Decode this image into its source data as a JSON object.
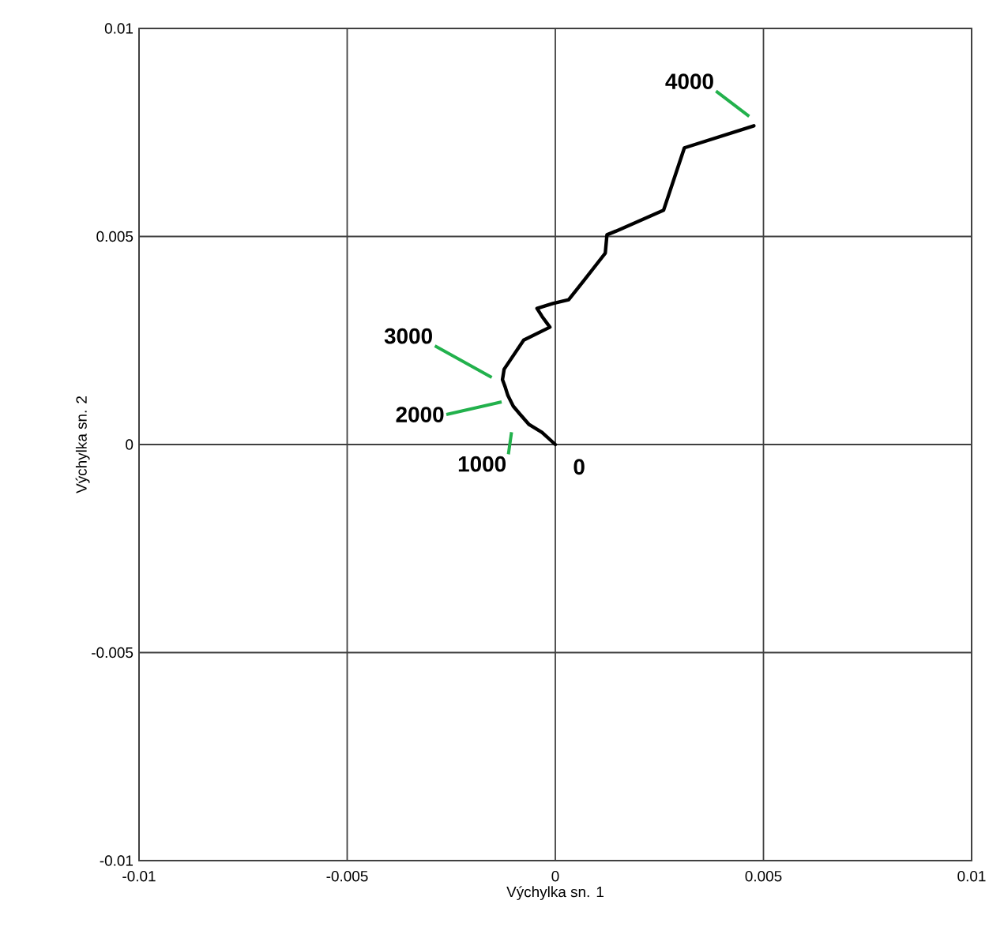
{
  "chart_data": {
    "type": "line",
    "xlabel": "Výchylka sn. 1",
    "ylabel": "Výchylka sn. 2",
    "x": [
      0,
      -0.00032,
      -0.00063,
      -0.00085,
      -0.00101,
      -0.00114,
      -0.0012,
      -0.00127,
      -0.00123,
      -0.00076,
      -0.00013,
      -0.00032,
      -0.00044,
      -6e-05,
      0.00032,
      0.0007,
      0.0012,
      0.00124,
      0.00146,
      0.0026,
      0.0031,
      0.00477
    ],
    "series": [
      {
        "color": "#000000",
        "values": [
          0,
          0.00029,
          0.00048,
          0.00073,
          0.00092,
          0.00118,
          0.00137,
          0.00156,
          0.00181,
          0.00251,
          0.00282,
          0.00308,
          0.00327,
          0.00339,
          0.00348,
          0.00396,
          0.0046,
          0.00504,
          0.00513,
          0.00563,
          0.00713,
          0.00766
        ]
      }
    ],
    "xlim": [
      -0.01,
      0.01
    ],
    "ylim": [
      -0.01,
      0.01
    ],
    "xticks": [
      -0.01,
      -0.005,
      0,
      0.005,
      0.01
    ],
    "yticks": [
      -0.01,
      -0.005,
      0,
      0.005,
      0.01
    ],
    "grid": true,
    "marker": "none",
    "line_style": "solid",
    "annotations": [
      {
        "text": "0",
        "x": 0,
        "y": 0
      },
      {
        "text": "1000",
        "x": -0.0009,
        "y": 0.0006
      },
      {
        "text": "2000",
        "x": -0.0011,
        "y": 0.0011
      },
      {
        "text": "3000",
        "x": -0.0013,
        "y": 0.0015
      },
      {
        "text": "4000",
        "x": 0.00477,
        "y": 0.00766
      }
    ]
  }
}
